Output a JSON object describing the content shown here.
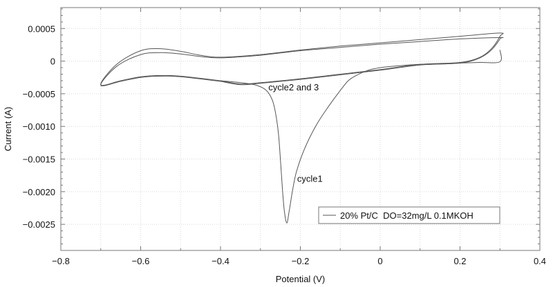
{
  "chart_data": {
    "type": "line",
    "title": "",
    "xlabel": "Potential (V)",
    "ylabel": "Current (A)",
    "xlim": [
      -0.8,
      0.4
    ],
    "ylim": [
      -0.0029,
      0.00082
    ],
    "grid": true,
    "x_ticks": [
      -0.8,
      -0.6,
      -0.4,
      -0.2,
      0,
      0.2,
      0.4
    ],
    "x_tick_labels": [
      "−0.8",
      "−0.6",
      "−0.4",
      "−0.2",
      "0",
      "0.2",
      "0.4"
    ],
    "y_ticks": [
      0.0005,
      0,
      -0.0005,
      -0.001,
      -0.0015,
      -0.002,
      -0.0025
    ],
    "y_tick_labels": [
      "0.0005",
      "0",
      "−0.0005",
      "−0.0010",
      "−0.0015",
      "−0.0020",
      "−0.0025"
    ],
    "legend": {
      "placement": "bottom-right",
      "entries": [
        "20% Pt/C  DO=32mg/L 0.1MKOH"
      ]
    },
    "annotations": [
      {
        "text": "cycle2 and 3",
        "x": -0.28,
        "y": -0.00045
      },
      {
        "text": "cycle1",
        "x": -0.208,
        "y": -0.00185
      }
    ],
    "line_color": "#555555",
    "series": [
      {
        "name": "cycle1",
        "x": [
          0.3,
          0.3,
          0.25,
          0.2,
          0.15,
          0.1,
          0.05,
          0.0,
          -0.03,
          -0.06,
          -0.08,
          -0.1,
          -0.13,
          -0.16,
          -0.19,
          -0.21,
          -0.22,
          -0.228,
          -0.234,
          -0.24,
          -0.245,
          -0.25,
          -0.255,
          -0.262,
          -0.27,
          -0.285,
          -0.31,
          -0.35,
          -0.4
        ],
        "y": [
          0.00017,
          -1e-05,
          -2e-05,
          -3e-05,
          -4e-05,
          -5e-05,
          -7e-05,
          -0.0001,
          -0.00014,
          -0.00022,
          -0.0003,
          -0.00045,
          -0.0007,
          -0.00098,
          -0.00135,
          -0.0017,
          -0.002,
          -0.0023,
          -0.00248,
          -0.0023,
          -0.00195,
          -0.0015,
          -0.0011,
          -0.0008,
          -0.0006,
          -0.00045,
          -0.00037,
          -0.00033,
          -0.0003
        ]
      },
      {
        "name": "cycle2",
        "x": [
          -0.4,
          -0.5,
          -0.55,
          -0.6,
          -0.65,
          -0.7,
          -0.66,
          -0.6,
          -0.55,
          -0.5,
          -0.45,
          -0.4,
          -0.3,
          -0.2,
          -0.1,
          0.0,
          0.1,
          0.2,
          0.3,
          0.3,
          0.28,
          0.25,
          0.2,
          0.1,
          0.0,
          -0.1,
          -0.2,
          -0.3,
          -0.35,
          -0.4
        ],
        "y": [
          -0.0003,
          -0.00023,
          -0.00022,
          -0.00024,
          -0.0003,
          -0.00036,
          -5e-05,
          0.00016,
          0.00019,
          0.00015,
          9e-05,
          6e-05,
          0.0001,
          0.00017,
          0.00023,
          0.00028,
          0.00033,
          0.00038,
          0.00043,
          0.00038,
          0.0002,
          6e-05,
          -2e-05,
          -5e-05,
          -0.00013,
          -0.0002,
          -0.00027,
          -0.00033,
          -0.00035,
          -0.0003
        ]
      },
      {
        "name": "cycle3",
        "x": [
          -0.4,
          -0.5,
          -0.55,
          -0.6,
          -0.65,
          -0.7,
          -0.66,
          -0.6,
          -0.55,
          -0.5,
          -0.45,
          -0.4,
          -0.3,
          -0.2,
          -0.1,
          0.0,
          0.1,
          0.2,
          0.3,
          0.3,
          0.28,
          0.25,
          0.2,
          0.1,
          0.0,
          -0.1,
          -0.2,
          -0.3,
          -0.35,
          -0.4
        ],
        "y": [
          -0.00031,
          -0.00024,
          -0.00023,
          -0.00025,
          -0.00031,
          -0.00037,
          -8e-05,
          0.0001,
          0.00013,
          0.00011,
          7e-05,
          5e-05,
          9e-05,
          0.00016,
          0.00021,
          0.00026,
          0.0003,
          0.00034,
          0.00036,
          0.00034,
          0.00018,
          5e-05,
          -3e-05,
          -6e-05,
          -0.00014,
          -0.00021,
          -0.00028,
          -0.00034,
          -0.00036,
          -0.00031
        ]
      }
    ]
  }
}
